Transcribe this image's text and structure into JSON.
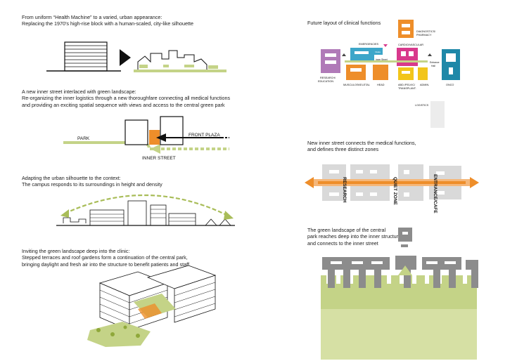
{
  "captions": {
    "silhouette": [
      "From uniform “Health Machine” to a varied, urban appearance:",
      "Replacing the 1970’s high-rise block with a human-scaled, city-like silhouette"
    ],
    "inner_street": [
      "A new inner street interlaced with green landscape:",
      "Re-organizing the inner logistics through a new thoroughfare connecting all medical functions",
      "and providing an exciting spatial sequence with views and access to the central green park"
    ],
    "context": [
      "Adapting the urban silhouette to the context:",
      "The campus responds to its surroundings in height and density"
    ],
    "landscape": [
      "Inviting the green landscape deep into the clinic:",
      "Stepped terraces and roof gardens form a continuation of the central park,",
      "bringing daylight and fresh air into the structure to benefit patients and staff"
    ],
    "future_layout": [
      "Future layout of clinical functions"
    ],
    "zones": [
      "New inner street connects the medical functions,",
      "and defines three distinct zones"
    ],
    "green_park": [
      "The green landscape of the central",
      "park reaches deep into the inner structure",
      "and connects to the inner street"
    ]
  },
  "street_diagram": {
    "park": "PARK",
    "front_plaza": "FRONT PLAZA",
    "inner_street": "INNER STREET"
  },
  "layout_labels": {
    "emergencies": "EMERGENCIES",
    "intake": "Intake",
    "diagnostics": [
      "DIAGNOSTICS/",
      "PHARMACY"
    ],
    "cardio": "CARDIO/VASCULAR",
    "inner_street": "Inner Street",
    "entrance_hall": [
      "Entrance",
      "Hall"
    ],
    "research": [
      "RESEARCH/",
      "EDUCATION"
    ],
    "musculo": "MUSCULOSKELETAL",
    "head": "HEAD",
    "abd": [
      "ABD./PELVIC/",
      "TRANSPLANT."
    ],
    "admin": "ADMIN.",
    "onco": "ONCO",
    "logistics": "LOGISTICS"
  },
  "zone_labels": {
    "research": "RESEARCH",
    "quiet": "QUIET ZONE",
    "entrance": "ENTRANCE/CAFE"
  },
  "colors": {
    "green": "#c4d387",
    "green_dark": "#8fa83a",
    "orange": "#ee8e2a",
    "magenta": "#d8398c",
    "purple": "#b07ab8",
    "cyan": "#3da6c9",
    "yellow": "#f2c51a",
    "teal": "#1e88a8",
    "gray": "#cfcfcf"
  }
}
